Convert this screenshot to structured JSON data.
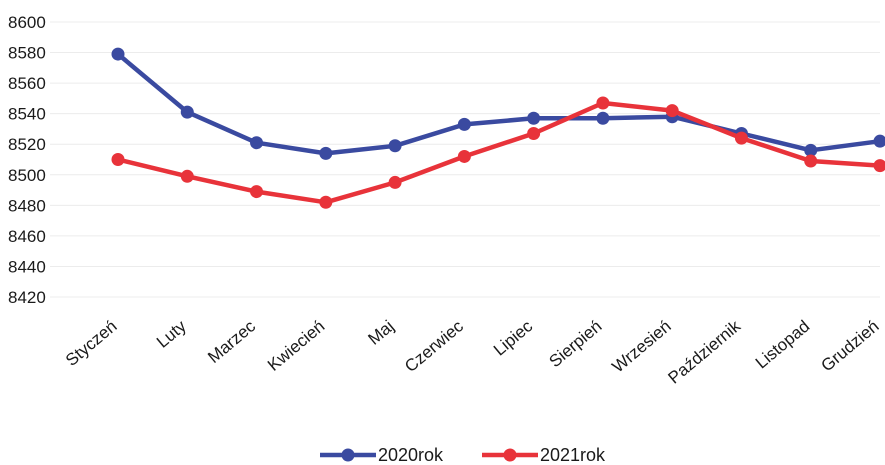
{
  "chart_data": {
    "type": "line",
    "categories": [
      "Styczeń",
      "Luty",
      "Marzec",
      "Kwiecień",
      "Maj",
      "Czerwiec",
      "Lipiec",
      "Sierpień",
      "Wrzesień",
      "Październik",
      "Listopad",
      "Grudzień"
    ],
    "series": [
      {
        "name": "2020rok",
        "color": "#3a4aa0",
        "values": [
          8579,
          8541,
          8521,
          8514,
          8519,
          8533,
          8537,
          8537,
          8538,
          8527,
          8516,
          8522
        ]
      },
      {
        "name": "2021rok",
        "color": "#e8333a",
        "values": [
          8510,
          8499,
          8489,
          8482,
          8495,
          8512,
          8527,
          8547,
          8542,
          8524,
          8509,
          8506
        ]
      }
    ],
    "yticks": [
      8420,
      8440,
      8460,
      8480,
      8500,
      8520,
      8540,
      8560,
      8580,
      8600
    ],
    "ylim": [
      8420,
      8600
    ],
    "grid": true,
    "legend_position": "bottom"
  }
}
